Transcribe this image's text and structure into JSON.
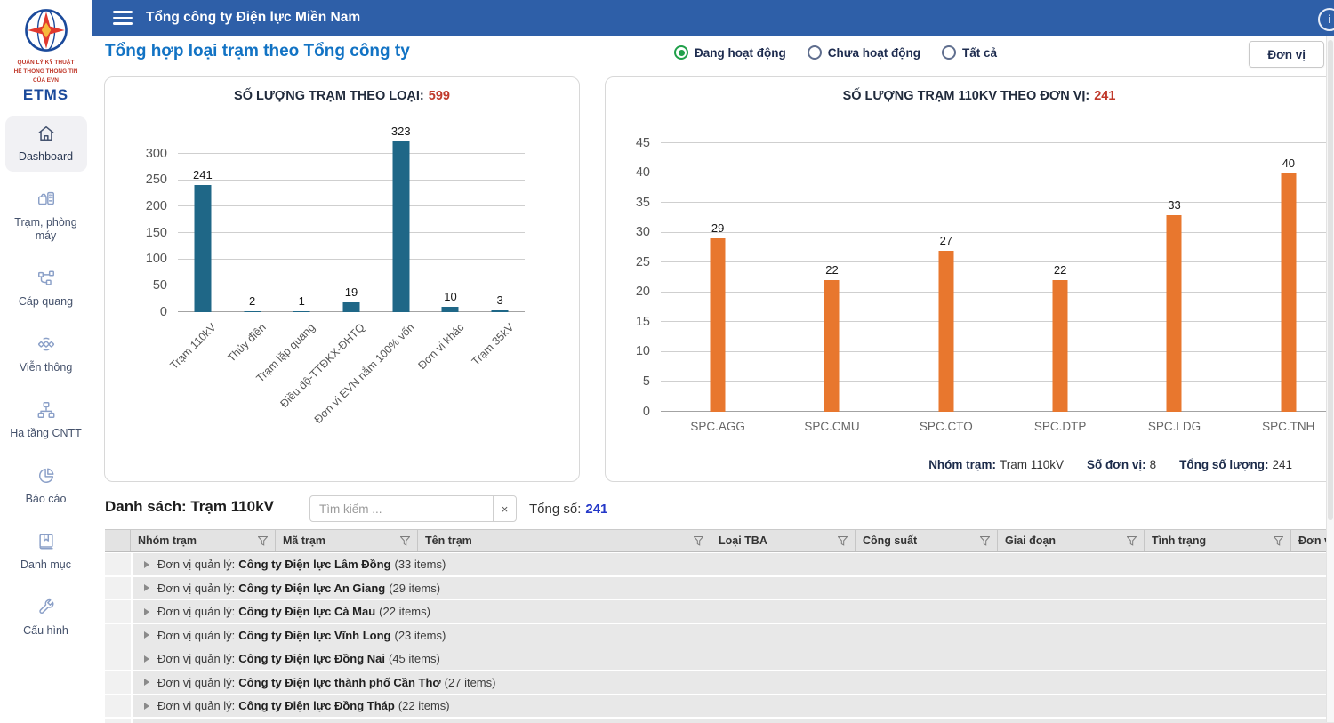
{
  "app": {
    "window_title": "Tổng công ty Điện lực Miền Nam"
  },
  "sidebar": {
    "logo_caption": [
      "QUẢN LÝ KỸ THUẬT",
      "HỆ THỐNG THÔNG TIN",
      "CỦA EVN"
    ],
    "app_name": "ETMS",
    "items": [
      {
        "label": "Dashboard",
        "icon": "home-icon",
        "active": true
      },
      {
        "label": "Trạm, phòng máy",
        "icon": "station-icon",
        "active": false
      },
      {
        "label": "Cáp quang",
        "icon": "fiber-nodes-icon",
        "active": false
      },
      {
        "label": "Viễn thông",
        "icon": "satellite-icon",
        "active": false
      },
      {
        "label": "Hạ tầng CNTT",
        "icon": "network-tree-icon",
        "active": false
      },
      {
        "label": "Báo cáo",
        "icon": "pie-chart-icon",
        "active": false
      },
      {
        "label": "Danh mục",
        "icon": "book-icon",
        "active": false
      },
      {
        "label": "Cấu hình",
        "icon": "wrench-icon",
        "active": false
      }
    ]
  },
  "page": {
    "title": "Tổng hợp loại trạm theo Tổng công ty",
    "radios": [
      {
        "label": "Đang hoạt động",
        "selected": true
      },
      {
        "label": "Chưa hoạt động",
        "selected": false
      },
      {
        "label": "Tất cả",
        "selected": false
      }
    ],
    "unit_button": "Đơn vị"
  },
  "colors": {
    "header_blue": "#2e5fa8",
    "accent_blue": "#1273c4",
    "teal_bar": "#1f6787",
    "orange_bar": "#e8772e",
    "total_red": "#c0392b",
    "selected_radio_green": "#21a04a",
    "table_total_blue": "#2438c8"
  },
  "chart_data": [
    {
      "type": "bar",
      "title": "SỐ LƯỢNG TRẠM THEO LOẠI:",
      "total": "599",
      "categories": [
        "Trạm 110kV",
        "Thủy điện",
        "Trạm lặp quang",
        "Điều độ-TTĐKX-ĐHTQ",
        "Đơn vị EVN nắm 100% vốn",
        "Đơn vị khác",
        "Trạm 35kV"
      ],
      "values": [
        241,
        2,
        1,
        19,
        323,
        10,
        3
      ],
      "ylim": [
        0,
        300
      ],
      "ytick_step": 50,
      "bar_color": "#1f6787",
      "rotate_labels": true,
      "grid": true,
      "legend": "none",
      "xlabel": "",
      "ylabel": ""
    },
    {
      "type": "bar",
      "title": "SỐ LƯỢNG TRẠM 110KV THEO ĐƠN VỊ:",
      "total": "241",
      "categories": [
        "SPC.AGG",
        "SPC.CMU",
        "SPC.CTO",
        "SPC.DTP",
        "SPC.LDG",
        "SPC.TNH"
      ],
      "values": [
        29,
        22,
        27,
        22,
        33,
        40
      ],
      "ylim": [
        0,
        45
      ],
      "ytick_step": 5,
      "bar_color": "#e8772e",
      "rotate_labels": false,
      "grid": true,
      "legend": "none",
      "xlabel": "",
      "ylabel": "",
      "footer": [
        {
          "label": "Nhóm trạm:",
          "value": "Trạm 110kV"
        },
        {
          "label": "Số đơn vị:",
          "value": "8"
        },
        {
          "label": "Tổng số lượng:",
          "value": "241"
        }
      ]
    }
  ],
  "table": {
    "title": "Danh sách: Trạm 110kV",
    "search_placeholder": "Tìm kiếm ...",
    "clear_button": "×",
    "total_label": "Tổng số:",
    "total_value": "241",
    "columns": [
      "Nhóm trạm",
      "Mã trạm",
      "Tên trạm",
      "Loại TBA",
      "Công suất",
      "Giai đoạn",
      "Tình trạng",
      "Đơn vị quản lý"
    ],
    "group_prefix": "Đơn vị quản lý:",
    "rows": [
      {
        "name": "Công ty Điện lực Lâm Đồng",
        "count": "(33 items)"
      },
      {
        "name": "Công ty Điện lực An Giang",
        "count": "(29 items)"
      },
      {
        "name": "Công ty Điện lực Cà Mau",
        "count": "(22 items)"
      },
      {
        "name": "Công ty Điện lực Vĩnh Long",
        "count": "(23 items)"
      },
      {
        "name": "Công ty Điện lực Đồng Nai",
        "count": "(45 items)"
      },
      {
        "name": "Công ty Điện lực thành phố Cần Thơ",
        "count": "(27 items)"
      },
      {
        "name": "Công ty Điện lực Đồng Tháp",
        "count": "(22 items)"
      }
    ]
  }
}
